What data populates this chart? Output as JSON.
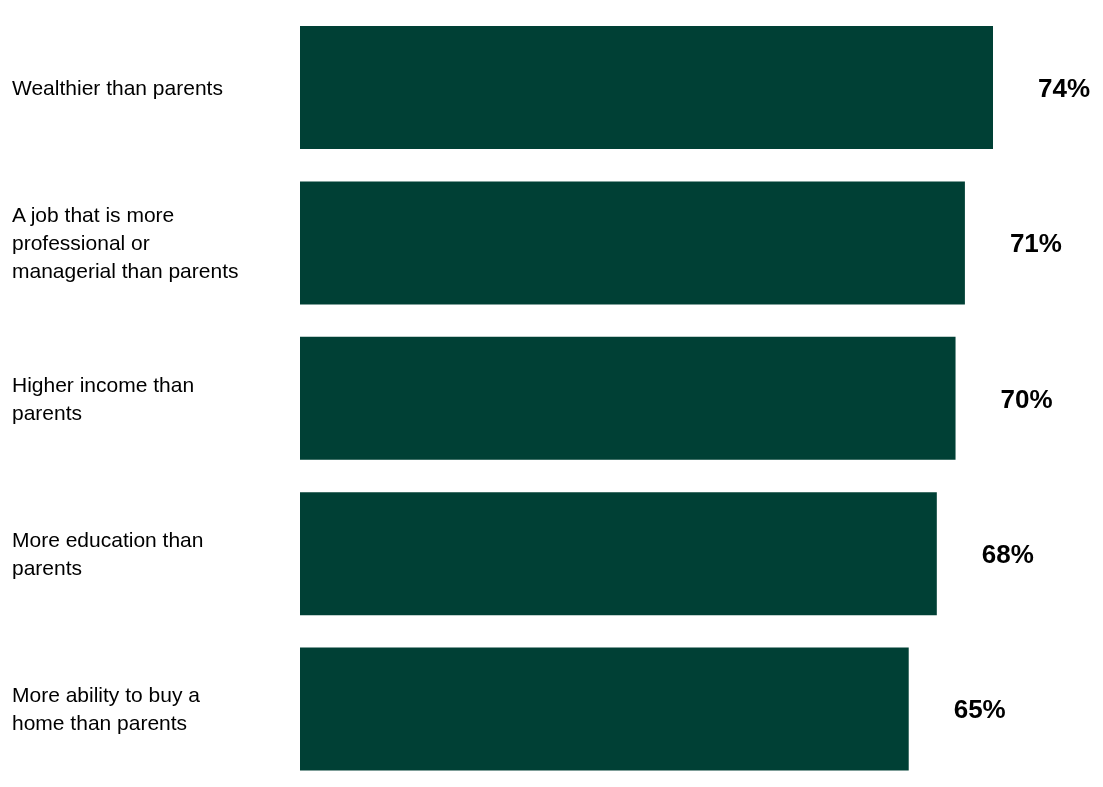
{
  "chart_data": {
    "type": "bar",
    "orientation": "horizontal",
    "categories": [
      "Wealthier than parents",
      "A job that is more professional or managerial than parents",
      "Higher income than parents",
      "More education than parents",
      "More ability to buy a home than parents"
    ],
    "values": [
      74,
      71,
      70,
      68,
      65
    ],
    "color": "#004035",
    "data_labels": true,
    "value_labels": [
      "74%",
      "71%",
      "70%",
      "68%",
      "65%"
    ],
    "grid": false,
    "legend": false
  }
}
